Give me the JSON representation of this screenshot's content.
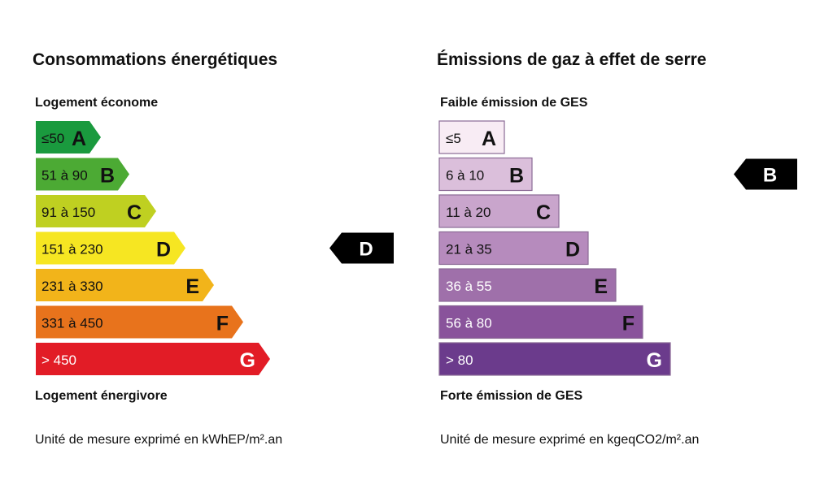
{
  "chart_data": [
    {
      "type": "bar",
      "title": "Consommations énergétiques",
      "top_label": "Logement économe",
      "bottom_label": "Logement énergivore",
      "unit_note": "Unité de mesure exprimé en kWhEP/m².an",
      "categories": [
        "A",
        "B",
        "C",
        "D",
        "E",
        "F",
        "G"
      ],
      "ranges": [
        "≤50",
        "51 à 90",
        "91 à 150",
        "151 à 230",
        "231 à 330",
        "331 à 450",
        "> 450"
      ],
      "colors": [
        "#1a9a3e",
        "#4caa34",
        "#bfd021",
        "#f6e622",
        "#f2b41a",
        "#e8731c",
        "#e21c26"
      ],
      "letter_colors": [
        "#111111",
        "#111111",
        "#111111",
        "#111111",
        "#111111",
        "#111111",
        "#ffffff"
      ],
      "range_colors": [
        "#111111",
        "#111111",
        "#111111",
        "#111111",
        "#111111",
        "#111111",
        "#ffffff"
      ],
      "rating": "D"
    },
    {
      "type": "bar",
      "title": "Émissions de gaz à effet de serre",
      "top_label": "Faible émission de GES",
      "bottom_label": "Forte émission de GES",
      "unit_note": "Unité de mesure exprimé en kgeqCO2/m².an",
      "categories": [
        "A",
        "B",
        "C",
        "D",
        "E",
        "F",
        "G"
      ],
      "ranges": [
        "≤5",
        "6 à 10",
        "11 à 20",
        "21 à 35",
        "36 à 55",
        "56 à 80",
        "> 80"
      ],
      "colors": [
        "#f8ecf4",
        "#dbbfdb",
        "#c9a5cc",
        "#b68bbd",
        "#9f70aa",
        "#89539b",
        "#6b3b8c"
      ],
      "letter_colors": [
        "#111111",
        "#111111",
        "#111111",
        "#111111",
        "#111111",
        "#111111",
        "#ffffff"
      ],
      "range_colors": [
        "#111111",
        "#111111",
        "#111111",
        "#111111",
        "#ffffff",
        "#ffffff",
        "#ffffff"
      ],
      "rating": "B"
    }
  ]
}
